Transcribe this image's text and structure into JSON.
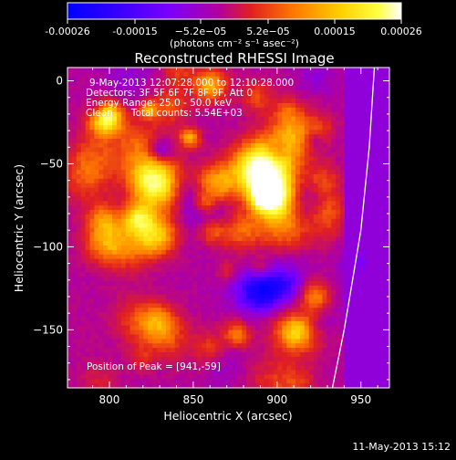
{
  "colorbar": {
    "ticks": [
      "-0.00026",
      "-0.00015",
      "−5.2e−05",
      "5.2e−05",
      "0.00015",
      "0.00026"
    ],
    "units": "(photons cm⁻² s⁻¹ asec⁻²)",
    "colors": [
      "#0000ff",
      "#2a00ff",
      "#7a00ff",
      "#b000a0",
      "#e02020",
      "#ff7a00",
      "#ffd000",
      "#ffff40",
      "#ffffff"
    ]
  },
  "chart_data": {
    "type": "heatmap",
    "title": "Reconstructed RHESSI Image",
    "xlabel": "Heliocentric X (arcsec)",
    "ylabel": "Heliocentric Y (arcsec)",
    "xlim": [
      775,
      967
    ],
    "ylim": [
      -185,
      8
    ],
    "xticks": [
      800,
      850,
      900,
      950
    ],
    "xtick_labels": [
      "800",
      "850",
      "900",
      "950"
    ],
    "yticks": [
      0,
      -50,
      -100,
      -150
    ],
    "ytick_labels": [
      "0",
      "−50",
      "−100",
      "−150"
    ],
    "colorbar_range": [
      -0.00026,
      0.00026
    ],
    "annotations": {
      "time_range": "9-May-2013 12:07:28.000 to 12:10:28.000",
      "detectors": "Detectors: 3F 5F 6F 7F 8F 9F, Att 0",
      "energy": "Energy Range: 25.0 - 50.0 keV",
      "clean": "Clean      Total counts: 5.54E+03",
      "peak": "Position of Peak = [941,-59]"
    },
    "peak": [
      941,
      -59
    ],
    "limb": [
      [
        958,
        8
      ],
      [
        955,
        -40
      ],
      [
        950,
        -90
      ],
      [
        945,
        -120
      ],
      [
        940,
        -150
      ],
      [
        933,
        -185
      ]
    ]
  },
  "timestamp": "11-May-2013 15:12"
}
